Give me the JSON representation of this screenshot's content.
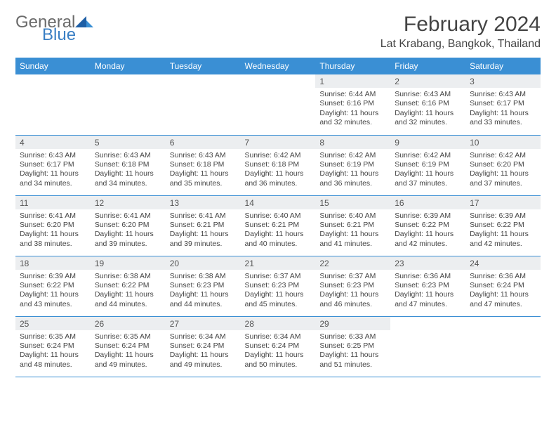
{
  "logo": {
    "part1": "General",
    "part2": "Blue"
  },
  "title": "February 2024",
  "location": "Lat Krabang, Bangkok, Thailand",
  "header_color": "#3a8fd4",
  "daynum_bg": "#eceef0",
  "border_color": "#3a8fd4",
  "text_color": "#444",
  "weekdays": [
    "Sunday",
    "Monday",
    "Tuesday",
    "Wednesday",
    "Thursday",
    "Friday",
    "Saturday"
  ],
  "weeks": [
    [
      null,
      null,
      null,
      null,
      {
        "d": "1",
        "sr": "6:44 AM",
        "ss": "6:16 PM",
        "dl": "11 hours and 32 minutes."
      },
      {
        "d": "2",
        "sr": "6:43 AM",
        "ss": "6:16 PM",
        "dl": "11 hours and 32 minutes."
      },
      {
        "d": "3",
        "sr": "6:43 AM",
        "ss": "6:17 PM",
        "dl": "11 hours and 33 minutes."
      }
    ],
    [
      {
        "d": "4",
        "sr": "6:43 AM",
        "ss": "6:17 PM",
        "dl": "11 hours and 34 minutes."
      },
      {
        "d": "5",
        "sr": "6:43 AM",
        "ss": "6:18 PM",
        "dl": "11 hours and 34 minutes."
      },
      {
        "d": "6",
        "sr": "6:43 AM",
        "ss": "6:18 PM",
        "dl": "11 hours and 35 minutes."
      },
      {
        "d": "7",
        "sr": "6:42 AM",
        "ss": "6:18 PM",
        "dl": "11 hours and 36 minutes."
      },
      {
        "d": "8",
        "sr": "6:42 AM",
        "ss": "6:19 PM",
        "dl": "11 hours and 36 minutes."
      },
      {
        "d": "9",
        "sr": "6:42 AM",
        "ss": "6:19 PM",
        "dl": "11 hours and 37 minutes."
      },
      {
        "d": "10",
        "sr": "6:42 AM",
        "ss": "6:20 PM",
        "dl": "11 hours and 37 minutes."
      }
    ],
    [
      {
        "d": "11",
        "sr": "6:41 AM",
        "ss": "6:20 PM",
        "dl": "11 hours and 38 minutes."
      },
      {
        "d": "12",
        "sr": "6:41 AM",
        "ss": "6:20 PM",
        "dl": "11 hours and 39 minutes."
      },
      {
        "d": "13",
        "sr": "6:41 AM",
        "ss": "6:21 PM",
        "dl": "11 hours and 39 minutes."
      },
      {
        "d": "14",
        "sr": "6:40 AM",
        "ss": "6:21 PM",
        "dl": "11 hours and 40 minutes."
      },
      {
        "d": "15",
        "sr": "6:40 AM",
        "ss": "6:21 PM",
        "dl": "11 hours and 41 minutes."
      },
      {
        "d": "16",
        "sr": "6:39 AM",
        "ss": "6:22 PM",
        "dl": "11 hours and 42 minutes."
      },
      {
        "d": "17",
        "sr": "6:39 AM",
        "ss": "6:22 PM",
        "dl": "11 hours and 42 minutes."
      }
    ],
    [
      {
        "d": "18",
        "sr": "6:39 AM",
        "ss": "6:22 PM",
        "dl": "11 hours and 43 minutes."
      },
      {
        "d": "19",
        "sr": "6:38 AM",
        "ss": "6:22 PM",
        "dl": "11 hours and 44 minutes."
      },
      {
        "d": "20",
        "sr": "6:38 AM",
        "ss": "6:23 PM",
        "dl": "11 hours and 44 minutes."
      },
      {
        "d": "21",
        "sr": "6:37 AM",
        "ss": "6:23 PM",
        "dl": "11 hours and 45 minutes."
      },
      {
        "d": "22",
        "sr": "6:37 AM",
        "ss": "6:23 PM",
        "dl": "11 hours and 46 minutes."
      },
      {
        "d": "23",
        "sr": "6:36 AM",
        "ss": "6:23 PM",
        "dl": "11 hours and 47 minutes."
      },
      {
        "d": "24",
        "sr": "6:36 AM",
        "ss": "6:24 PM",
        "dl": "11 hours and 47 minutes."
      }
    ],
    [
      {
        "d": "25",
        "sr": "6:35 AM",
        "ss": "6:24 PM",
        "dl": "11 hours and 48 minutes."
      },
      {
        "d": "26",
        "sr": "6:35 AM",
        "ss": "6:24 PM",
        "dl": "11 hours and 49 minutes."
      },
      {
        "d": "27",
        "sr": "6:34 AM",
        "ss": "6:24 PM",
        "dl": "11 hours and 49 minutes."
      },
      {
        "d": "28",
        "sr": "6:34 AM",
        "ss": "6:24 PM",
        "dl": "11 hours and 50 minutes."
      },
      {
        "d": "29",
        "sr": "6:33 AM",
        "ss": "6:25 PM",
        "dl": "11 hours and 51 minutes."
      },
      null,
      null
    ]
  ],
  "labels": {
    "sunrise": "Sunrise: ",
    "sunset": "Sunset: ",
    "daylight": "Daylight: "
  }
}
